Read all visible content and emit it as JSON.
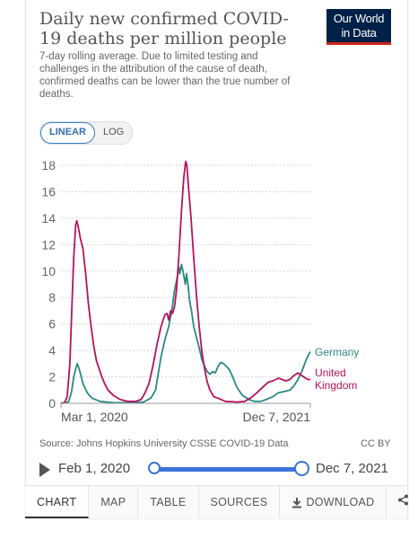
{
  "header": {
    "title": "Daily new confirmed COVID-19 deaths per million people",
    "subtitle": "7-day rolling average. Due to limited testing and challenges in the attribution of the cause of death, confirmed deaths can be lower than the true number of deaths.",
    "logo_line1": "Our World",
    "logo_line2": "in Data",
    "logo_bg": "#002147",
    "logo_accent": "#ce261e"
  },
  "scale_toggle": {
    "linear_label": "LINEAR",
    "log_label": "LOG",
    "selected": "LINEAR"
  },
  "chart_data": {
    "type": "line",
    "title": "Daily new confirmed COVID-19 deaths per million people",
    "xlabel": "",
    "ylabel": "",
    "x_tick_labels": [
      "Mar 1, 2020",
      "Dec 7, 2021"
    ],
    "y_ticks": [
      0,
      2,
      4,
      6,
      8,
      10,
      12,
      14,
      16,
      18
    ],
    "ylim": [
      0,
      18
    ],
    "xlim": [
      "2020-03-01",
      "2021-12-07"
    ],
    "grid": "horizontal dotted",
    "legend": "inline-right",
    "series": [
      {
        "name": "Germany",
        "color": "#2a8a84",
        "points": [
          [
            "2020-03-01",
            0
          ],
          [
            "2020-03-20",
            0.1
          ],
          [
            "2020-03-28",
            0.8
          ],
          [
            "2020-04-03",
            2.0
          ],
          [
            "2020-04-08",
            2.6
          ],
          [
            "2020-04-12",
            3.0
          ],
          [
            "2020-04-16",
            2.7
          ],
          [
            "2020-04-20",
            2.3
          ],
          [
            "2020-04-27",
            1.5
          ],
          [
            "2020-05-08",
            0.8
          ],
          [
            "2020-05-20",
            0.4
          ],
          [
            "2020-06-10",
            0.15
          ],
          [
            "2020-07-15",
            0.05
          ],
          [
            "2020-09-01",
            0.05
          ],
          [
            "2020-10-01",
            0.1
          ],
          [
            "2020-10-20",
            0.4
          ],
          [
            "2020-11-01",
            1.0
          ],
          [
            "2020-11-15",
            3.5
          ],
          [
            "2020-11-25",
            4.8
          ],
          [
            "2020-12-05",
            5.8
          ],
          [
            "2020-12-13",
            7.0
          ],
          [
            "2020-12-20",
            8.5
          ],
          [
            "2020-12-27",
            9.5
          ],
          [
            "2020-12-31",
            10.3
          ],
          [
            "2021-01-03",
            9.8
          ],
          [
            "2021-01-07",
            10.5
          ],
          [
            "2021-01-11",
            10.0
          ],
          [
            "2021-01-14",
            9.5
          ],
          [
            "2021-01-17",
            9.0
          ],
          [
            "2021-01-20",
            9.8
          ],
          [
            "2021-01-24",
            9.0
          ],
          [
            "2021-01-28",
            7.8
          ],
          [
            "2021-02-02",
            7.0
          ],
          [
            "2021-02-08",
            5.8
          ],
          [
            "2021-02-15",
            5.0
          ],
          [
            "2021-02-22",
            4.2
          ],
          [
            "2021-03-01",
            3.3
          ],
          [
            "2021-03-08",
            2.8
          ],
          [
            "2021-03-15",
            2.4
          ],
          [
            "2021-03-22",
            2.2
          ],
          [
            "2021-03-29",
            2.4
          ],
          [
            "2021-04-05",
            2.3
          ],
          [
            "2021-04-12",
            2.8
          ],
          [
            "2021-04-19",
            3.1
          ],
          [
            "2021-04-26",
            3.0
          ],
          [
            "2021-05-03",
            2.8
          ],
          [
            "2021-05-10",
            2.6
          ],
          [
            "2021-05-17",
            2.2
          ],
          [
            "2021-05-31",
            1.2
          ],
          [
            "2021-06-14",
            0.6
          ],
          [
            "2021-07-01",
            0.3
          ],
          [
            "2021-07-15",
            0.15
          ],
          [
            "2021-08-01",
            0.15
          ],
          [
            "2021-08-15",
            0.3
          ],
          [
            "2021-09-01",
            0.5
          ],
          [
            "2021-09-15",
            0.8
          ],
          [
            "2021-10-01",
            0.9
          ],
          [
            "2021-10-15",
            1.0
          ],
          [
            "2021-10-25",
            1.3
          ],
          [
            "2021-11-05",
            1.8
          ],
          [
            "2021-11-15",
            2.4
          ],
          [
            "2021-11-25",
            3.2
          ],
          [
            "2021-12-01",
            3.6
          ],
          [
            "2021-12-07",
            3.9
          ]
        ]
      },
      {
        "name": "United Kingdom",
        "color": "#b5135d",
        "points": [
          [
            "2020-03-01",
            0
          ],
          [
            "2020-03-10",
            0.05
          ],
          [
            "2020-03-17",
            0.5
          ],
          [
            "2020-03-24",
            3.0
          ],
          [
            "2020-03-29",
            7.0
          ],
          [
            "2020-04-03",
            11.0
          ],
          [
            "2020-04-08",
            13.5
          ],
          [
            "2020-04-11",
            13.8
          ],
          [
            "2020-04-15",
            13.3
          ],
          [
            "2020-04-20",
            12.5
          ],
          [
            "2020-04-27",
            11.7
          ],
          [
            "2020-05-04",
            9.8
          ],
          [
            "2020-05-11",
            7.5
          ],
          [
            "2020-05-18",
            5.8
          ],
          [
            "2020-05-25",
            4.3
          ],
          [
            "2020-06-01",
            3.2
          ],
          [
            "2020-06-08",
            2.6
          ],
          [
            "2020-06-15",
            2.0
          ],
          [
            "2020-06-22",
            1.5
          ],
          [
            "2020-07-01",
            1.0
          ],
          [
            "2020-07-15",
            0.6
          ],
          [
            "2020-08-01",
            0.3
          ],
          [
            "2020-08-20",
            0.15
          ],
          [
            "2020-09-10",
            0.15
          ],
          [
            "2020-09-25",
            0.3
          ],
          [
            "2020-10-05",
            0.8
          ],
          [
            "2020-10-15",
            1.5
          ],
          [
            "2020-10-25",
            2.8
          ],
          [
            "2020-11-05",
            4.5
          ],
          [
            "2020-11-15",
            5.8
          ],
          [
            "2020-11-25",
            6.7
          ],
          [
            "2020-12-01",
            6.8
          ],
          [
            "2020-12-05",
            6.3
          ],
          [
            "2020-12-10",
            7.0
          ],
          [
            "2020-12-15",
            6.8
          ],
          [
            "2020-12-20",
            7.3
          ],
          [
            "2020-12-25",
            8.5
          ],
          [
            "2020-12-31",
            11.0
          ],
          [
            "2021-01-07",
            14.5
          ],
          [
            "2021-01-13",
            17.0
          ],
          [
            "2021-01-18",
            18.3
          ],
          [
            "2021-01-21",
            18.0
          ],
          [
            "2021-01-25",
            16.5
          ],
          [
            "2021-02-01",
            14.0
          ],
          [
            "2021-02-08",
            11.0
          ],
          [
            "2021-02-15",
            8.2
          ],
          [
            "2021-02-22",
            5.8
          ],
          [
            "2021-03-01",
            3.9
          ],
          [
            "2021-03-08",
            2.6
          ],
          [
            "2021-03-15",
            1.6
          ],
          [
            "2021-03-22",
            1.0
          ],
          [
            "2021-04-01",
            0.5
          ],
          [
            "2021-04-15",
            0.35
          ],
          [
            "2021-05-01",
            0.15
          ],
          [
            "2021-06-01",
            0.1
          ],
          [
            "2021-06-20",
            0.15
          ],
          [
            "2021-07-10",
            0.5
          ],
          [
            "2021-07-25",
            0.9
          ],
          [
            "2021-08-05",
            1.2
          ],
          [
            "2021-08-20",
            1.6
          ],
          [
            "2021-09-01",
            1.7
          ],
          [
            "2021-09-15",
            1.9
          ],
          [
            "2021-09-25",
            1.8
          ],
          [
            "2021-10-05",
            1.7
          ],
          [
            "2021-10-15",
            1.8
          ],
          [
            "2021-10-25",
            2.1
          ],
          [
            "2021-11-05",
            2.3
          ],
          [
            "2021-11-15",
            2.1
          ],
          [
            "2021-11-25",
            1.9
          ],
          [
            "2021-12-01",
            1.8
          ],
          [
            "2021-12-07",
            1.8
          ]
        ]
      }
    ]
  },
  "legend": {
    "germany": "Germany",
    "uk_line1": "United",
    "uk_line2": "Kingdom"
  },
  "footer": {
    "source": "Source: Johns Hopkins University CSSE COVID-19 Data",
    "license": "CC BY"
  },
  "timeline": {
    "start_label": "Feb 1, 2020",
    "end_label": "Dec 7, 2021",
    "accent": "#3b74d9"
  },
  "tabs": {
    "chart": "CHART",
    "map": "MAP",
    "table": "TABLE",
    "sources": "SOURCES",
    "download": "DOWNLOAD"
  },
  "icons": {
    "play": "play-icon",
    "download": "download-icon",
    "share": "share-icon"
  }
}
